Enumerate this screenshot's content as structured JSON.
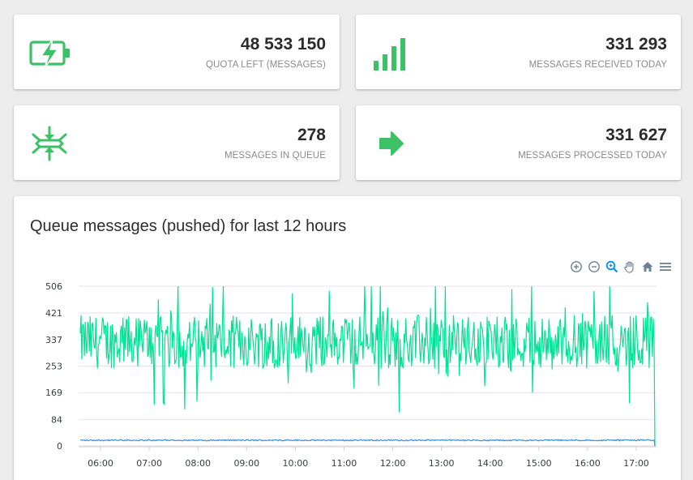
{
  "stats": [
    {
      "value": "48 533 150",
      "label": "QUOTA LEFT (MESSAGES)",
      "icon": "battery-charging-icon"
    },
    {
      "value": "331 293",
      "label": "MESSAGES RECEIVED TODAY",
      "icon": "signal-bars-icon"
    },
    {
      "value": "278",
      "label": "MESSAGES IN QUEUE",
      "icon": "queue-compress-icon"
    },
    {
      "value": "331 627",
      "label": "MESSAGES PROCESSED TODAY",
      "icon": "arrow-right-icon"
    }
  ],
  "colors": {
    "accent": "#3cc167",
    "series_main": "#00e396",
    "series_secondary": "#3b8fd9",
    "toolbar_active": "#008ffb",
    "toolbar": "#6e8192"
  },
  "chart": {
    "title": "Queue messages (pushed) for last 12 hours",
    "toolbar": [
      "zoom-in-icon",
      "zoom-out-icon",
      "zoom-select-icon",
      "pan-hand-icon",
      "home-icon",
      "menu-icon"
    ]
  },
  "chart_data": {
    "type": "line",
    "title": "Queue messages (pushed) for last 12 hours",
    "xlabel": "",
    "ylabel": "",
    "ylim": [
      0,
      506
    ],
    "y_ticks": [
      "0",
      "84",
      "169",
      "253",
      "337",
      "421",
      "506"
    ],
    "x_ticks": [
      "06:00",
      "07:00",
      "08:00",
      "09:00",
      "10:00",
      "11:00",
      "12:00",
      "13:00",
      "14:00",
      "15:00",
      "16:00",
      "17:00"
    ],
    "x_range": [
      "05:33",
      "17:25"
    ],
    "grid": true,
    "legend": "none",
    "series": [
      {
        "values_summary": {
          "min": 100,
          "max": 506,
          "typical": [
            250,
            420
          ],
          "end": 0
        }
      },
      {
        "values_summary": {
          "typical": 18,
          "end": 0
        }
      }
    ]
  }
}
